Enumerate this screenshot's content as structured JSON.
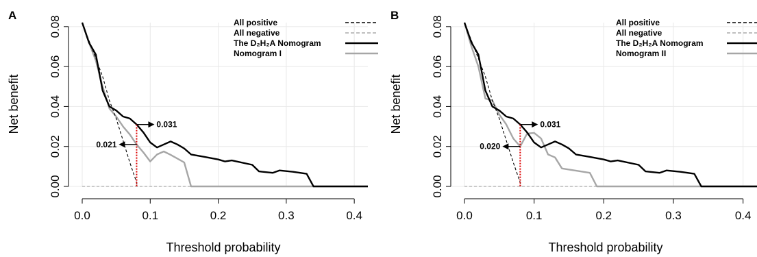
{
  "chart_data": [
    {
      "type": "line",
      "panel_label": "A",
      "xlabel": "Threshold probability",
      "ylabel": "Net benefit",
      "xlim": [
        0,
        0.42
      ],
      "ylim": [
        0,
        0.082
      ],
      "x_ticks": [
        "0.0",
        "0.1",
        "0.2",
        "0.3",
        "0.4"
      ],
      "y_ticks": [
        "0.00",
        "0.02",
        "0.04",
        "0.06",
        "0.08"
      ],
      "grid": true,
      "legend_position": "top-right",
      "series": [
        {
          "name": "All positive",
          "style": "dashed",
          "color": "#000000",
          "points": [
            [
              0,
              0.082
            ],
            [
              0.01,
              0.073
            ],
            [
              0.02,
              0.064
            ],
            [
              0.03,
              0.055
            ],
            [
              0.04,
              0.043
            ],
            [
              0.05,
              0.034
            ],
            [
              0.06,
              0.023
            ],
            [
              0.07,
              0.012
            ],
            [
              0.08,
              0.002
            ],
            [
              0.081,
              0
            ]
          ]
        },
        {
          "name": "All negative",
          "style": "dashed",
          "color": "#aaaaaa",
          "points": [
            [
              0,
              0
            ],
            [
              0.42,
              0
            ]
          ]
        },
        {
          "name": "The D₂H₂A Nomogram",
          "style": "solid",
          "color": "#000000",
          "points": [
            [
              0,
              0.082
            ],
            [
              0.01,
              0.072
            ],
            [
              0.02,
              0.066
            ],
            [
              0.03,
              0.048
            ],
            [
              0.04,
              0.04
            ],
            [
              0.05,
              0.038
            ],
            [
              0.06,
              0.035
            ],
            [
              0.07,
              0.034
            ],
            [
              0.08,
              0.031
            ],
            [
              0.09,
              0.027
            ],
            [
              0.1,
              0.022
            ],
            [
              0.11,
              0.0195
            ],
            [
              0.12,
              0.021
            ],
            [
              0.13,
              0.0225
            ],
            [
              0.14,
              0.021
            ],
            [
              0.15,
              0.019
            ],
            [
              0.16,
              0.016
            ],
            [
              0.18,
              0.0148
            ],
            [
              0.2,
              0.0135
            ],
            [
              0.21,
              0.0125
            ],
            [
              0.22,
              0.013
            ],
            [
              0.25,
              0.0108
            ],
            [
              0.26,
              0.0075
            ],
            [
              0.28,
              0.0068
            ],
            [
              0.29,
              0.008
            ],
            [
              0.31,
              0.0073
            ],
            [
              0.33,
              0.0063
            ],
            [
              0.34,
              0
            ],
            [
              0.42,
              0
            ]
          ]
        },
        {
          "name": "Nomogram I",
          "style": "solid",
          "color": "#a6a6a6",
          "points": [
            [
              0,
              0.082
            ],
            [
              0.01,
              0.072
            ],
            [
              0.02,
              0.063
            ],
            [
              0.03,
              0.05
            ],
            [
              0.04,
              0.039
            ],
            [
              0.05,
              0.035
            ],
            [
              0.06,
              0.03
            ],
            [
              0.07,
              0.026
            ],
            [
              0.08,
              0.021
            ],
            [
              0.09,
              0.017
            ],
            [
              0.1,
              0.0125
            ],
            [
              0.11,
              0.016
            ],
            [
              0.12,
              0.0175
            ],
            [
              0.13,
              0.0158
            ],
            [
              0.15,
              0.012
            ],
            [
              0.16,
              0
            ],
            [
              0.42,
              0
            ]
          ]
        }
      ],
      "annotations": [
        {
          "text": "0.031",
          "x": 0.08,
          "y": 0.031,
          "direction": "right"
        },
        {
          "text": "0.021",
          "x": 0.08,
          "y": 0.021,
          "direction": "left"
        }
      ],
      "reference_line": {
        "x": 0.08,
        "color": "#dd0000"
      }
    },
    {
      "type": "line",
      "panel_label": "B",
      "xlabel": "Threshold probability",
      "ylabel": "Net benefit",
      "xlim": [
        0,
        0.42
      ],
      "ylim": [
        0,
        0.082
      ],
      "x_ticks": [
        "0.0",
        "0.1",
        "0.2",
        "0.3",
        "0.4"
      ],
      "y_ticks": [
        "0.00",
        "0.02",
        "0.04",
        "0.06",
        "0.08"
      ],
      "grid": true,
      "legend_position": "top-right",
      "series": [
        {
          "name": "All positive",
          "style": "dashed",
          "color": "#000000",
          "points": [
            [
              0,
              0.082
            ],
            [
              0.01,
              0.073
            ],
            [
              0.02,
              0.064
            ],
            [
              0.03,
              0.055
            ],
            [
              0.04,
              0.043
            ],
            [
              0.05,
              0.034
            ],
            [
              0.06,
              0.023
            ],
            [
              0.07,
              0.012
            ],
            [
              0.08,
              0.002
            ],
            [
              0.081,
              0
            ]
          ]
        },
        {
          "name": "All negative",
          "style": "dashed",
          "color": "#aaaaaa",
          "points": [
            [
              0,
              0
            ],
            [
              0.42,
              0
            ]
          ]
        },
        {
          "name": "The D₂H₂A Nomogram",
          "style": "solid",
          "color": "#000000",
          "points": [
            [
              0,
              0.082
            ],
            [
              0.01,
              0.072
            ],
            [
              0.02,
              0.066
            ],
            [
              0.03,
              0.048
            ],
            [
              0.04,
              0.04
            ],
            [
              0.05,
              0.038
            ],
            [
              0.06,
              0.035
            ],
            [
              0.07,
              0.034
            ],
            [
              0.08,
              0.031
            ],
            [
              0.09,
              0.027
            ],
            [
              0.1,
              0.022
            ],
            [
              0.11,
              0.0195
            ],
            [
              0.12,
              0.021
            ],
            [
              0.13,
              0.0225
            ],
            [
              0.14,
              0.021
            ],
            [
              0.15,
              0.019
            ],
            [
              0.16,
              0.016
            ],
            [
              0.18,
              0.0148
            ],
            [
              0.2,
              0.0135
            ],
            [
              0.21,
              0.0125
            ],
            [
              0.22,
              0.013
            ],
            [
              0.25,
              0.0108
            ],
            [
              0.26,
              0.0075
            ],
            [
              0.28,
              0.0068
            ],
            [
              0.29,
              0.008
            ],
            [
              0.31,
              0.0073
            ],
            [
              0.33,
              0.0063
            ],
            [
              0.34,
              0
            ],
            [
              0.42,
              0
            ]
          ]
        },
        {
          "name": "Nomogram II",
          "style": "solid",
          "color": "#a6a6a6",
          "points": [
            [
              0,
              0.082
            ],
            [
              0.01,
              0.07
            ],
            [
              0.02,
              0.06
            ],
            [
              0.03,
              0.044
            ],
            [
              0.04,
              0.043
            ],
            [
              0.05,
              0.036
            ],
            [
              0.06,
              0.031
            ],
            [
              0.07,
              0.024
            ],
            [
              0.08,
              0.02
            ],
            [
              0.09,
              0.0265
            ],
            [
              0.1,
              0.0268
            ],
            [
              0.11,
              0.024
            ],
            [
              0.12,
              0.016
            ],
            [
              0.13,
              0.0145
            ],
            [
              0.14,
              0.009
            ],
            [
              0.18,
              0.0068
            ],
            [
              0.19,
              0
            ],
            [
              0.42,
              0
            ]
          ]
        }
      ],
      "annotations": [
        {
          "text": "0.031",
          "x": 0.08,
          "y": 0.031,
          "direction": "right"
        },
        {
          "text": "0.020",
          "x": 0.08,
          "y": 0.02,
          "direction": "left"
        }
      ],
      "reference_line": {
        "x": 0.08,
        "color": "#dd0000"
      }
    }
  ]
}
